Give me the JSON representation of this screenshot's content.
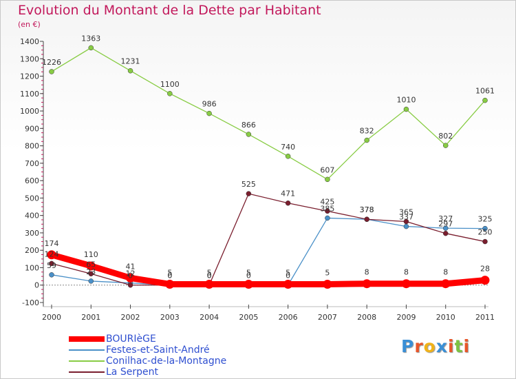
{
  "title": "Evolution du Montant de la Dette par Habitant",
  "unit": "(en €)",
  "logo": {
    "text": "Proxiti",
    "letters": [
      "P",
      "r",
      "o",
      "x",
      "i",
      "t",
      "i"
    ],
    "colors": [
      "#3a8fd6",
      "#e8562a",
      "#f0b21a",
      "#3a8fd6",
      "#e8562a",
      "#7cc242",
      "#e8562a"
    ]
  },
  "chart_data": {
    "type": "line",
    "title": "Evolution du Montant de la Dette par Habitant",
    "ylabel": "(en €)",
    "xlabel": "",
    "categories": [
      "2000",
      "2001",
      "2002",
      "2003",
      "2004",
      "2005",
      "2006",
      "2007",
      "2008",
      "2009",
      "2010",
      "2011"
    ],
    "ylim": [
      -100,
      1400
    ],
    "yticks": [
      -100,
      0,
      100,
      200,
      300,
      400,
      500,
      600,
      700,
      800,
      900,
      1000,
      1100,
      1200,
      1300,
      1400
    ],
    "grid": false,
    "legend_position": "bottom-left",
    "series": [
      {
        "name": "BOURIèGE",
        "color": "#ff0000",
        "values": [
          174,
          110,
          41,
          5,
          5,
          5,
          5,
          5,
          8,
          8,
          8,
          28
        ],
        "labels": [
          "174",
          "110",
          "41",
          "5",
          "5",
          "5",
          "5",
          "5",
          "8",
          "8",
          "8",
          "28"
        ]
      },
      {
        "name": "Festes-et-Saint-André",
        "color": "#4a90c8",
        "values": [
          59,
          23,
          12,
          0,
          0,
          0,
          0,
          385,
          378,
          337,
          327,
          325
        ],
        "labels": [
          "59",
          "23",
          "12",
          "0",
          "0",
          "0",
          "0",
          "385",
          "378",
          "337",
          "327",
          "325"
        ]
      },
      {
        "name": "Conilhac-de-la-Montagne",
        "color": "#88cc44",
        "values": [
          1226,
          1363,
          1231,
          1100,
          986,
          866,
          740,
          607,
          832,
          1010,
          802,
          1061
        ],
        "labels": [
          "1226",
          "1363",
          "1231",
          "1100",
          "986",
          "866",
          "740",
          "607",
          "832",
          "1010",
          "802",
          "1061"
        ]
      },
      {
        "name": "La Serpent",
        "color": "#7a1e2e",
        "values": [
          124,
          65,
          0,
          0,
          0,
          525,
          471,
          425,
          378,
          365,
          297,
          250
        ],
        "labels": [
          "124",
          "65",
          "0",
          "0",
          "0",
          "525",
          "471",
          "425",
          "378",
          "365",
          "297",
          "250"
        ]
      }
    ]
  }
}
